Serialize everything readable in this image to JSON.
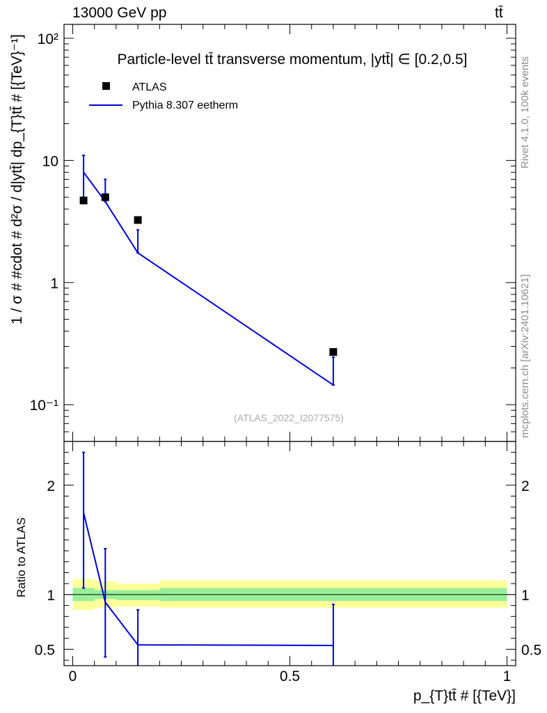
{
  "header": {
    "left": "13000 GeV pp",
    "right": "tt̄"
  },
  "side_labels": {
    "rivet": "Rivet 4.1.0,  100k events",
    "mcplots": "mcplots.cern.ch [arXiv:2401.10621]"
  },
  "chart_data": [
    {
      "panel": "main",
      "type": "scatter",
      "title": "Particle-level tt̄ transverse momentum, |ytt̄| ∈ [0.2,0.5]",
      "ylabel": "1 / σ # #cdot # d²σ / d|ytt̄| dp_{T}tt̄ # [{TeV}⁻¹]",
      "xlabel": "",
      "yscale": "log",
      "ylim": [
        0.05,
        130
      ],
      "xlim": [
        -0.02,
        1.02
      ],
      "ytick_values": [
        0.1,
        1,
        10,
        100
      ],
      "ytick_labels": [
        "10⁻¹",
        "1",
        "10",
        "10²"
      ],
      "watermark": "(ATLAS_2022_I2077575)",
      "legend_position": "top-left",
      "series": [
        {
          "name": "ATLAS",
          "color": "#000000",
          "style": "markers",
          "bins": [
            [
              0.0,
              0.05
            ],
            [
              0.05,
              0.1
            ],
            [
              0.1,
              0.2
            ],
            [
              0.2,
              1.0
            ]
          ],
          "x": [
            0.025,
            0.075,
            0.15,
            0.6
          ],
          "y": [
            4.7,
            5.0,
            3.25,
            0.27
          ]
        },
        {
          "name": "Pythia 8.307 eetherm",
          "color": "#0000dd",
          "style": "line",
          "x": [
            0.025,
            0.075,
            0.15,
            0.6
          ],
          "y": [
            8.0,
            4.6,
            1.75,
            0.145
          ],
          "yerr_low": [
            4.7,
            4.6,
            1.75,
            0.145
          ],
          "yerr_high": [
            11.0,
            7.0,
            2.7,
            0.245
          ]
        }
      ]
    },
    {
      "panel": "ratio",
      "type": "line",
      "ylabel": "Ratio to ATLAS",
      "xlabel": "p_{T}tt̄ # [{TeV}]",
      "ylim": [
        0.35,
        2.4
      ],
      "xlim": [
        -0.02,
        1.02
      ],
      "ytick_values": [
        0.5,
        1,
        2
      ],
      "ytick_labels": [
        "0.5",
        "1",
        "2"
      ],
      "xtick_values": [
        0,
        0.5,
        1
      ],
      "xtick_labels": [
        "0",
        "0.5",
        "1"
      ],
      "reference_line": 1,
      "bands": {
        "bins": [
          [
            0.0,
            0.05
          ],
          [
            0.05,
            0.1
          ],
          [
            0.1,
            0.2
          ],
          [
            0.2,
            1.0
          ]
        ],
        "inner_color": "#99f099",
        "outer_color": "#ffff99",
        "inner_low": [
          0.94,
          0.96,
          0.95,
          0.94
        ],
        "inner_high": [
          1.06,
          1.04,
          1.04,
          1.06
        ],
        "outer_low": [
          0.86,
          0.88,
          0.89,
          0.88
        ],
        "outer_high": [
          1.14,
          1.12,
          1.1,
          1.13
        ]
      },
      "series": [
        {
          "name": "Pythia 8.307 eetherm",
          "color": "#0000dd",
          "x": [
            0.025,
            0.075,
            0.15,
            0.6
          ],
          "y": [
            1.75,
            0.93,
            0.54,
            0.535
          ],
          "step_end": 1.0,
          "yerr_low": [
            1.06,
            0.43,
            0.3,
            0.3
          ],
          "yerr_high": [
            2.3,
            1.42,
            0.86,
            0.91
          ]
        }
      ]
    }
  ]
}
